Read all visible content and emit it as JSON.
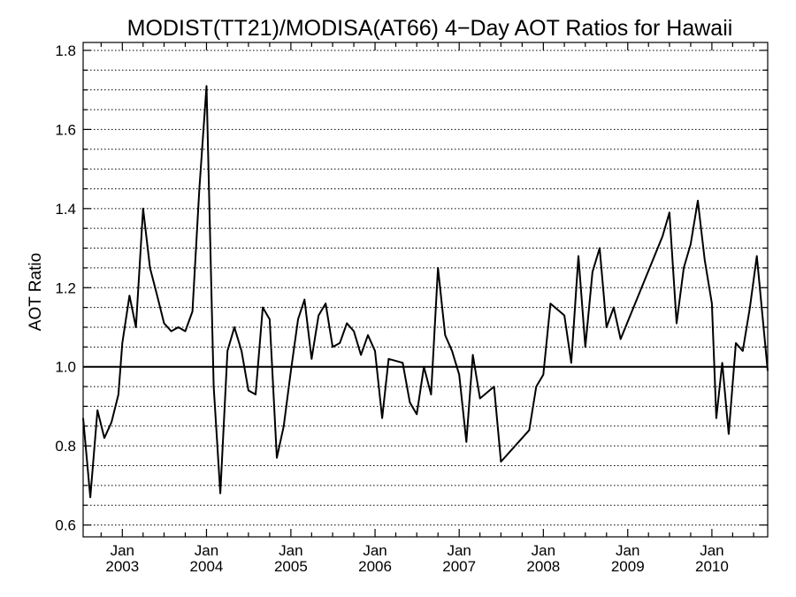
{
  "chart_data": {
    "type": "line",
    "title": "MODIST(TT21)/MODISA(AT66) 4−Day AOT Ratios for Hawaii",
    "xlabel": "",
    "ylabel": "AOT Ratio",
    "ylim": [
      0.57,
      1.82
    ],
    "xlim": [
      "2002-07-15",
      "2010-08-31"
    ],
    "y_ticks": [
      "0.6",
      "0.8",
      "1.0",
      "1.2",
      "1.4",
      "1.6",
      "1.8"
    ],
    "x_ticks": [
      {
        "month": "Jan",
        "year": "2003",
        "date": "2003-01-01"
      },
      {
        "month": "Jan",
        "year": "2004",
        "date": "2004-01-01"
      },
      {
        "month": "Jan",
        "year": "2005",
        "date": "2005-01-01"
      },
      {
        "month": "Jan",
        "year": "2006",
        "date": "2006-01-01"
      },
      {
        "month": "Jan",
        "year": "2007",
        "date": "2007-01-01"
      },
      {
        "month": "Jan",
        "year": "2008",
        "date": "2008-01-01"
      },
      {
        "month": "Jan",
        "year": "2009",
        "date": "2009-01-01"
      },
      {
        "month": "Jan",
        "year": "2010",
        "date": "2010-01-01"
      }
    ],
    "grid": true,
    "reference_line": 1.0,
    "series": [
      {
        "points": [
          [
            "2002-07-15",
            0.87
          ],
          [
            "2002-08-15",
            0.67
          ],
          [
            "2002-09-15",
            0.89
          ],
          [
            "2002-10-15",
            0.82
          ],
          [
            "2002-11-15",
            0.86
          ],
          [
            "2002-12-15",
            0.93
          ],
          [
            "2003-01-01",
            1.06
          ],
          [
            "2003-02-01",
            1.18
          ],
          [
            "2003-03-01",
            1.1
          ],
          [
            "2003-04-01",
            1.4
          ],
          [
            "2003-05-01",
            1.25
          ],
          [
            "2003-06-01",
            1.18
          ],
          [
            "2003-07-01",
            1.11
          ],
          [
            "2003-08-01",
            1.09
          ],
          [
            "2003-09-01",
            1.1
          ],
          [
            "2003-10-01",
            1.09
          ],
          [
            "2003-11-01",
            1.14
          ],
          [
            "2003-12-01",
            1.45
          ],
          [
            "2004-01-01",
            1.71
          ],
          [
            "2004-02-01",
            0.95
          ],
          [
            "2004-03-01",
            0.68
          ],
          [
            "2004-04-01",
            1.04
          ],
          [
            "2004-05-01",
            1.1
          ],
          [
            "2004-06-01",
            1.04
          ],
          [
            "2004-07-01",
            0.94
          ],
          [
            "2004-08-01",
            0.93
          ],
          [
            "2004-09-01",
            1.15
          ],
          [
            "2004-10-01",
            1.12
          ],
          [
            "2004-11-01",
            0.77
          ],
          [
            "2004-12-01",
            0.85
          ],
          [
            "2005-01-01",
            0.99
          ],
          [
            "2005-02-01",
            1.12
          ],
          [
            "2005-03-01",
            1.17
          ],
          [
            "2005-04-01",
            1.02
          ],
          [
            "2005-05-01",
            1.13
          ],
          [
            "2005-06-01",
            1.16
          ],
          [
            "2005-07-01",
            1.05
          ],
          [
            "2005-08-01",
            1.06
          ],
          [
            "2005-09-01",
            1.11
          ],
          [
            "2005-10-01",
            1.09
          ],
          [
            "2005-11-01",
            1.03
          ],
          [
            "2005-12-01",
            1.08
          ],
          [
            "2006-01-01",
            1.04
          ],
          [
            "2006-02-01",
            0.87
          ],
          [
            "2006-03-01",
            1.02
          ],
          [
            "2006-05-01",
            1.01
          ],
          [
            "2006-06-01",
            0.91
          ],
          [
            "2006-07-01",
            0.88
          ],
          [
            "2006-08-01",
            1.0
          ],
          [
            "2006-09-01",
            0.93
          ],
          [
            "2006-10-01",
            1.25
          ],
          [
            "2006-11-01",
            1.08
          ],
          [
            "2006-12-01",
            1.04
          ],
          [
            "2007-01-01",
            0.98
          ],
          [
            "2007-02-01",
            0.81
          ],
          [
            "2007-03-01",
            1.03
          ],
          [
            "2007-04-01",
            0.92
          ],
          [
            "2007-06-01",
            0.95
          ],
          [
            "2007-07-01",
            0.76
          ],
          [
            "2007-11-01",
            0.84
          ],
          [
            "2007-12-01",
            0.95
          ],
          [
            "2008-01-01",
            0.98
          ],
          [
            "2008-02-01",
            1.16
          ],
          [
            "2008-04-01",
            1.13
          ],
          [
            "2008-05-01",
            1.01
          ],
          [
            "2008-06-01",
            1.28
          ],
          [
            "2008-07-01",
            1.05
          ],
          [
            "2008-08-01",
            1.24
          ],
          [
            "2008-09-01",
            1.3
          ],
          [
            "2008-10-01",
            1.1
          ],
          [
            "2008-11-01",
            1.15
          ],
          [
            "2008-12-01",
            1.07
          ],
          [
            "2009-06-01",
            1.33
          ],
          [
            "2009-07-01",
            1.39
          ],
          [
            "2009-08-01",
            1.11
          ],
          [
            "2009-09-01",
            1.25
          ],
          [
            "2009-10-01",
            1.31
          ],
          [
            "2009-11-01",
            1.42
          ],
          [
            "2009-12-01",
            1.27
          ],
          [
            "2010-01-01",
            1.16
          ],
          [
            "2010-01-20",
            0.87
          ],
          [
            "2010-02-15",
            1.01
          ],
          [
            "2010-03-15",
            0.83
          ],
          [
            "2010-04-15",
            1.06
          ],
          [
            "2010-05-15",
            1.04
          ],
          [
            "2010-06-15",
            1.15
          ],
          [
            "2010-07-15",
            1.28
          ],
          [
            "2010-08-31",
            0.99
          ]
        ]
      }
    ]
  }
}
